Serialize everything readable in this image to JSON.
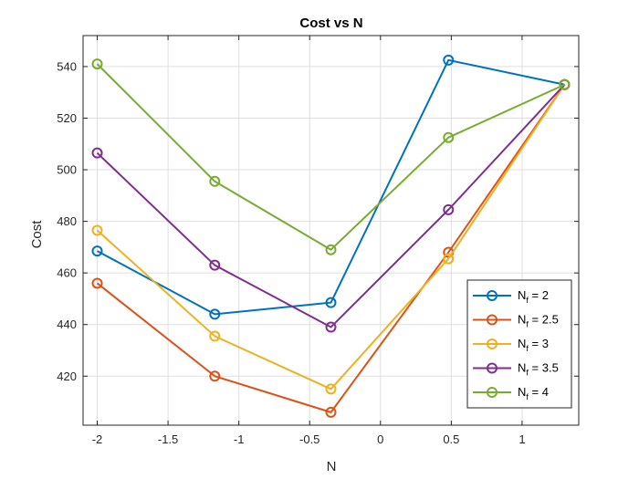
{
  "chart_data": {
    "type": "line",
    "title": "Cost vs N",
    "xlabel": "N",
    "ylabel": "Cost",
    "xlim": [
      -2.1,
      1.4
    ],
    "ylim": [
      401,
      552
    ],
    "xticks": [
      -2,
      -1.5,
      -1,
      -0.5,
      0,
      0.5,
      1
    ],
    "xtick_labels": [
      "-2",
      "-1.5",
      "-1",
      "-0.5",
      "0",
      "0.5",
      "1"
    ],
    "yticks": [
      420,
      440,
      460,
      480,
      500,
      520,
      540
    ],
    "ytick_labels": [
      "420",
      "440",
      "460",
      "480",
      "500",
      "520",
      "540"
    ],
    "grid": true,
    "legend_position": "bottom-right",
    "x": [
      -2,
      -1.17,
      -0.35,
      0.48,
      1.3
    ],
    "series": [
      {
        "name": "N_f = 2",
        "label_base": "N",
        "label_sub": "f",
        "label_rest": " = 2",
        "color": "#0072BD",
        "values": [
          468.5,
          444,
          448.5,
          542.5,
          533
        ]
      },
      {
        "name": "N_f = 2.5",
        "label_base": "N",
        "label_sub": "f",
        "label_rest": " = 2.5",
        "color": "#D95319",
        "values": [
          456,
          420,
          406,
          468,
          533
        ]
      },
      {
        "name": "N_f = 3",
        "label_base": "N",
        "label_sub": "f",
        "label_rest": " = 3",
        "color": "#EDB120",
        "values": [
          476.5,
          435.5,
          415,
          465.5,
          533
        ]
      },
      {
        "name": "N_f = 3.5",
        "label_base": "N",
        "label_sub": "f",
        "label_rest": " = 3.5",
        "color": "#7E2F8E",
        "values": [
          506.5,
          463,
          439,
          484.5,
          533
        ]
      },
      {
        "name": "N_f = 4",
        "label_base": "N",
        "label_sub": "f",
        "label_rest": " = 4",
        "color": "#77AC30",
        "values": [
          541,
          495.5,
          469,
          512.5,
          533
        ]
      }
    ]
  }
}
